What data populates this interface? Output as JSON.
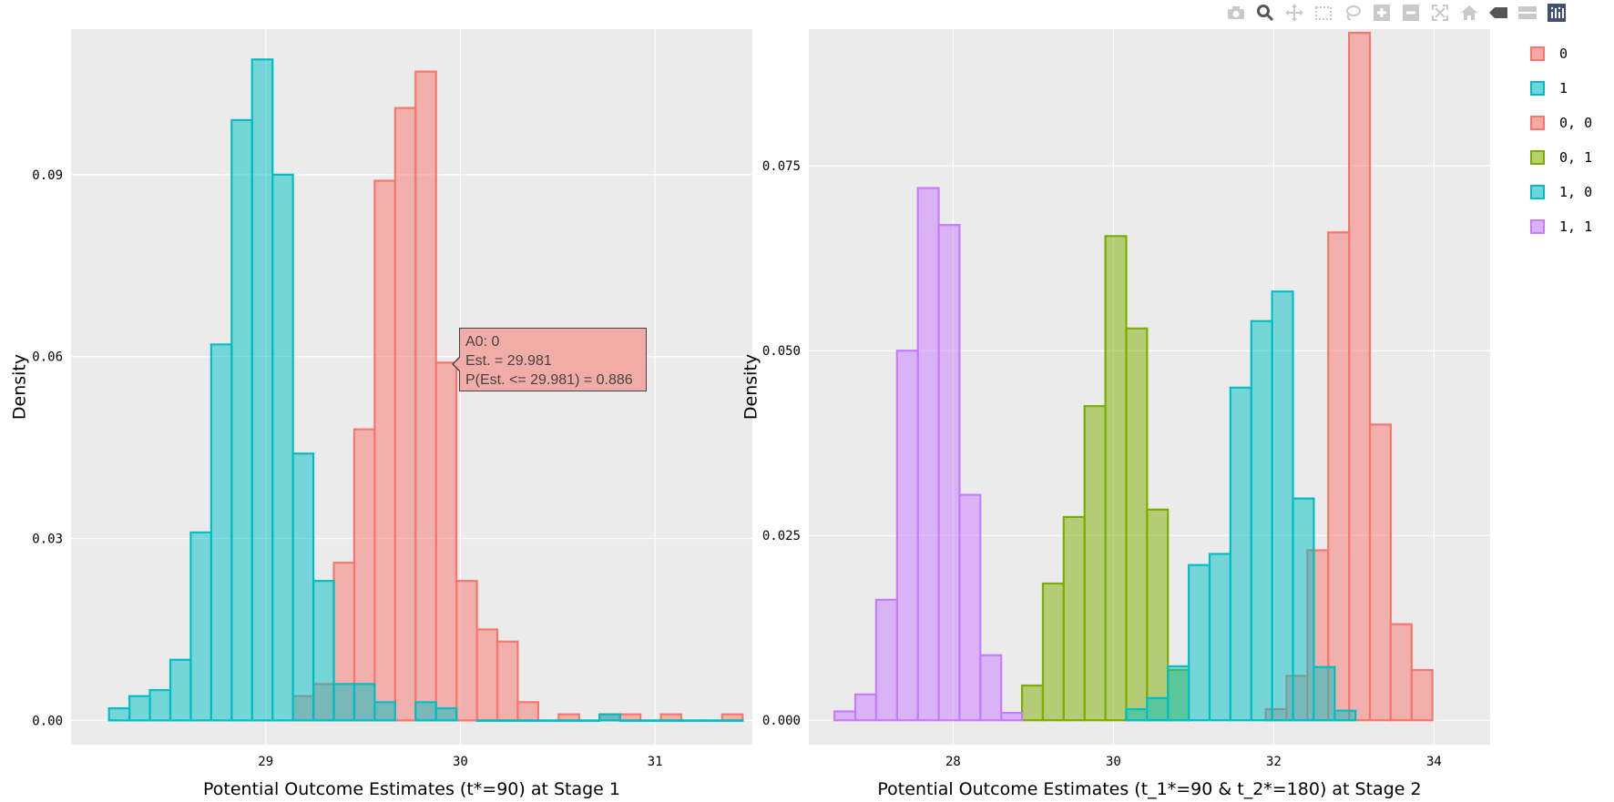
{
  "modebar": {
    "buttons": [
      "camera-icon",
      "zoom-icon",
      "pan-icon",
      "box-select-icon",
      "lasso-select-icon",
      "zoom-in-icon",
      "zoom-out-icon",
      "autoscale-icon",
      "reset-axes-icon",
      "hover-closest-icon",
      "hover-compare-icon",
      "plotly-logo-icon"
    ]
  },
  "legend": [
    {
      "label": "0",
      "fill": "#f4a9a4",
      "line": "#f8766d"
    },
    {
      "label": "1",
      "fill": "#6dd6da",
      "line": "#00bfc4"
    },
    {
      "label": "0, 0",
      "fill": "#f4a9a4",
      "line": "#f8766d"
    },
    {
      "label": "0, 1",
      "fill": "#b5cf6b",
      "line": "#7cae00"
    },
    {
      "label": "1, 0",
      "fill": "#6dd6da",
      "line": "#00bfc4"
    },
    {
      "label": "1, 1",
      "fill": "#d9b3f5",
      "line": "#c77cff"
    }
  ],
  "tooltip": {
    "line1": "A0: 0",
    "line2": "Est. = 29.981",
    "line3": "P(Est. <= 29.981) = 0.886"
  },
  "chart_data": [
    {
      "type": "histogram",
      "xlabel": "Potential Outcome Estimates (t*=90) at Stage 1",
      "ylabel": "Density",
      "xlim": [
        28.0,
        31.5
      ],
      "ylim": [
        -0.004,
        0.114
      ],
      "xticks": [
        29,
        30,
        31
      ],
      "xtick_labels": [
        "29",
        "30",
        "31"
      ],
      "yticks": [
        0,
        0.03,
        0.06,
        0.09
      ],
      "ytick_labels": [
        "0.00",
        "0.03",
        "0.06",
        "0.09"
      ],
      "bin_width": 0.105,
      "series": [
        {
          "name": "0",
          "fill": "#f8766d",
          "line": "#f8766d",
          "bin_start": [
            29.14,
            29.245,
            29.35,
            29.455,
            29.56,
            29.665,
            29.77,
            29.875,
            29.98,
            30.085,
            30.19,
            30.295,
            30.505,
            30.715,
            30.82,
            31.03,
            31.345
          ],
          "values": [
            0.004,
            0.006,
            0.026,
            0.048,
            0.089,
            0.101,
            0.107,
            0.059,
            0.023,
            0.015,
            0.013,
            0.003,
            0.001,
            0.001,
            0.001,
            0.001,
            0.001
          ]
        },
        {
          "name": "1",
          "fill": "#00bfc4",
          "line": "#00bfc4",
          "bin_start": [
            28.195,
            28.3,
            28.405,
            28.51,
            28.615,
            28.72,
            28.825,
            28.93,
            29.035,
            29.14,
            29.245,
            29.35,
            29.455,
            29.56,
            29.77,
            29.875,
            30.085,
            30.19,
            30.295,
            30.4,
            30.505,
            30.61,
            30.715,
            30.82,
            30.925,
            31.03,
            31.135,
            31.24,
            31.345
          ],
          "values": [
            0.002,
            0.004,
            0.005,
            0.01,
            0.031,
            0.062,
            0.099,
            0.109,
            0.09,
            0.044,
            0.023,
            0.006,
            0.006,
            0.003,
            0.003,
            0.002,
            0,
            0,
            0,
            0,
            0,
            0,
            0.001,
            0,
            0,
            0,
            0,
            0,
            0
          ]
        }
      ]
    },
    {
      "type": "histogram",
      "xlabel": "Potential Outcome Estimates (t_1*=90 & t_2*=180) at Stage 2",
      "ylabel": "Density",
      "xlim": [
        26.2,
        34.7
      ],
      "ylim": [
        -0.0033,
        0.0935
      ],
      "xticks": [
        28,
        30,
        32,
        34
      ],
      "xtick_labels": [
        "28",
        "30",
        "32",
        "34"
      ],
      "yticks": [
        0,
        0.025,
        0.05,
        0.075
      ],
      "ytick_labels": [
        "0.000",
        "0.025",
        "0.050",
        "0.075"
      ],
      "bin_width": 0.26,
      "series": [
        {
          "name": "0, 0",
          "fill": "#f8766d",
          "line": "#f8766d",
          "bin_start": [
            31.9,
            32.16,
            32.42,
            32.68,
            32.94,
            33.2,
            33.46,
            33.72
          ],
          "values": [
            0.0015,
            0.006,
            0.023,
            0.066,
            0.093,
            0.04,
            0.013,
            0.0068
          ]
        },
        {
          "name": "0, 1",
          "fill": "#7cae00",
          "line": "#7cae00",
          "bin_start": [
            28.86,
            29.12,
            29.38,
            29.64,
            29.9,
            30.16,
            30.42,
            30.68
          ],
          "values": [
            0.0047,
            0.0185,
            0.0275,
            0.0425,
            0.0655,
            0.053,
            0.0285,
            0.0068
          ]
        },
        {
          "name": "1, 0",
          "fill": "#00bfc4",
          "line": "#00bfc4",
          "bin_start": [
            30.16,
            30.42,
            30.68,
            30.94,
            31.2,
            31.46,
            31.72,
            31.98,
            32.24,
            32.5,
            32.76
          ],
          "values": [
            0.0015,
            0.003,
            0.0073,
            0.021,
            0.0225,
            0.045,
            0.054,
            0.058,
            0.03,
            0.0072,
            0.0013
          ]
        },
        {
          "name": "1, 1",
          "fill": "#c77cff",
          "line": "#c77cff",
          "bin_start": [
            26.52,
            26.78,
            27.04,
            27.3,
            27.56,
            27.82,
            28.08,
            28.34,
            28.6
          ],
          "values": [
            0.0012,
            0.0035,
            0.0163,
            0.05,
            0.072,
            0.067,
            0.0305,
            0.0088,
            0.001
          ]
        }
      ]
    }
  ]
}
